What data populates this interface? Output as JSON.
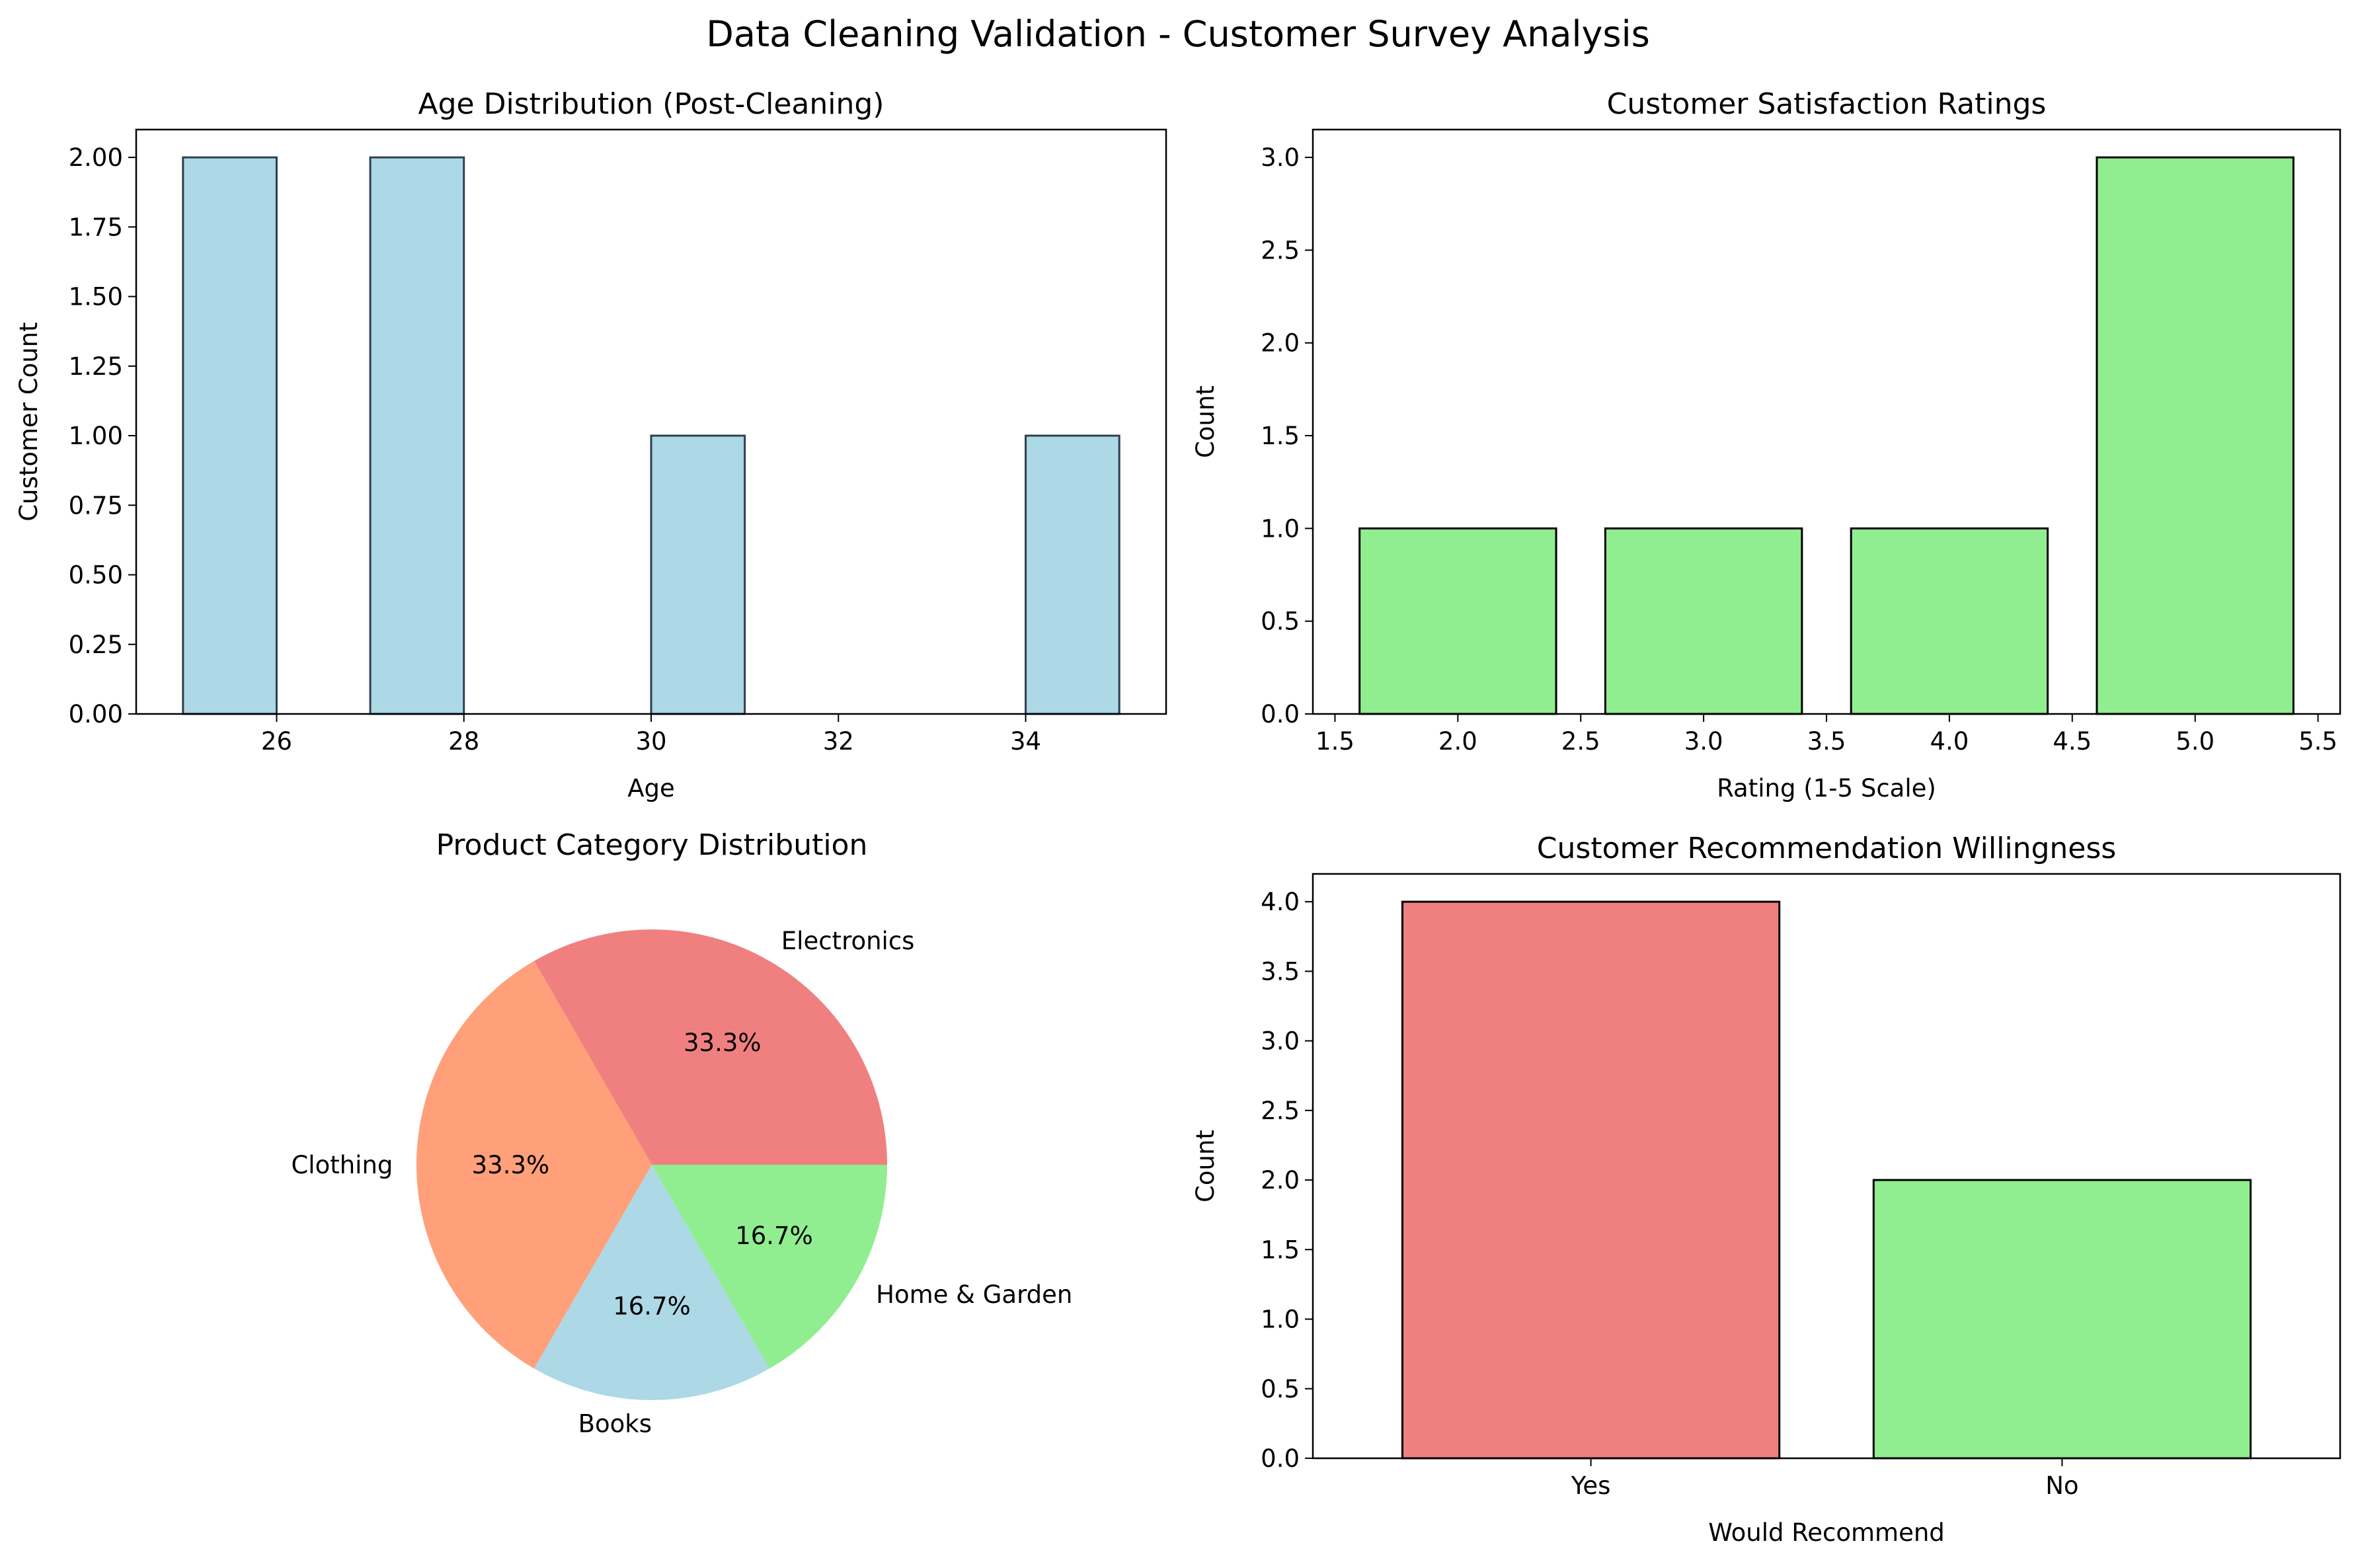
{
  "suptitle": "Data Cleaning Validation - Customer Survey Analysis",
  "chart_data": [
    {
      "type": "bar",
      "subtype": "histogram",
      "title": "Age Distribution (Post-Cleaning)",
      "xlabel": "Age",
      "ylabel": "Customer Count",
      "bins": [
        {
          "x0": 25,
          "x1": 26,
          "count": 2
        },
        {
          "x0": 26,
          "x1": 27,
          "count": 0
        },
        {
          "x0": 27,
          "x1": 28,
          "count": 2
        },
        {
          "x0": 28,
          "x1": 29,
          "count": 0
        },
        {
          "x0": 29,
          "x1": 30,
          "count": 0
        },
        {
          "x0": 30,
          "x1": 31,
          "count": 1
        },
        {
          "x0": 31,
          "x1": 32,
          "count": 0
        },
        {
          "x0": 32,
          "x1": 33,
          "count": 0
        },
        {
          "x0": 33,
          "x1": 34,
          "count": 0
        },
        {
          "x0": 34,
          "x1": 35,
          "count": 1
        }
      ],
      "xlim": [
        24.5,
        35.5
      ],
      "ylim": [
        0,
        2.1
      ],
      "xticks": [
        26,
        28,
        30,
        32,
        34
      ],
      "yticks": [
        "0.00",
        "0.25",
        "0.50",
        "0.75",
        "1.00",
        "1.25",
        "1.50",
        "1.75",
        "2.00"
      ],
      "color": "#add8e6",
      "edgecolor": "#2f3f4f"
    },
    {
      "type": "bar",
      "title": "Customer Satisfaction Ratings",
      "xlabel": "Rating (1-5 Scale)",
      "ylabel": "Count",
      "x": [
        2,
        3,
        4,
        5
      ],
      "values": [
        1,
        1,
        1,
        3
      ],
      "bar_width": 0.8,
      "xlim": [
        1.41,
        5.59
      ],
      "ylim": [
        0,
        3.15
      ],
      "xticks": [
        "1.5",
        "2.0",
        "2.5",
        "3.0",
        "3.5",
        "4.0",
        "4.5",
        "5.0",
        "5.5"
      ],
      "yticks": [
        "0.0",
        "0.5",
        "1.0",
        "1.5",
        "2.0",
        "2.5",
        "3.0"
      ],
      "color": "#90ee90",
      "edgecolor": "#000000"
    },
    {
      "type": "pie",
      "title": "Product Category Distribution",
      "slices": [
        {
          "label": "Electronics",
          "value": 2,
          "pct": "33.3%",
          "color": "#f08080"
        },
        {
          "label": "Clothing",
          "value": 2,
          "pct": "33.3%",
          "color": "#ffa07a"
        },
        {
          "label": "Books",
          "value": 1,
          "pct": "16.7%",
          "color": "#add8e6"
        },
        {
          "label": "Home & Garden",
          "value": 1,
          "pct": "16.7%",
          "color": "#90ee90"
        }
      ]
    },
    {
      "type": "bar",
      "title": "Customer Recommendation Willingness",
      "xlabel": "Would Recommend",
      "ylabel": "Count",
      "categories": [
        "Yes",
        "No"
      ],
      "values": [
        4,
        2
      ],
      "colors": [
        "#f08080",
        "#90ee90"
      ],
      "bar_width": 0.8,
      "xlim": [
        -0.59,
        1.59
      ],
      "ylim": [
        0,
        4.2
      ],
      "yticks": [
        "0.0",
        "0.5",
        "1.0",
        "1.5",
        "2.0",
        "2.5",
        "3.0",
        "3.5",
        "4.0"
      ],
      "edgecolor": "#000000"
    }
  ]
}
